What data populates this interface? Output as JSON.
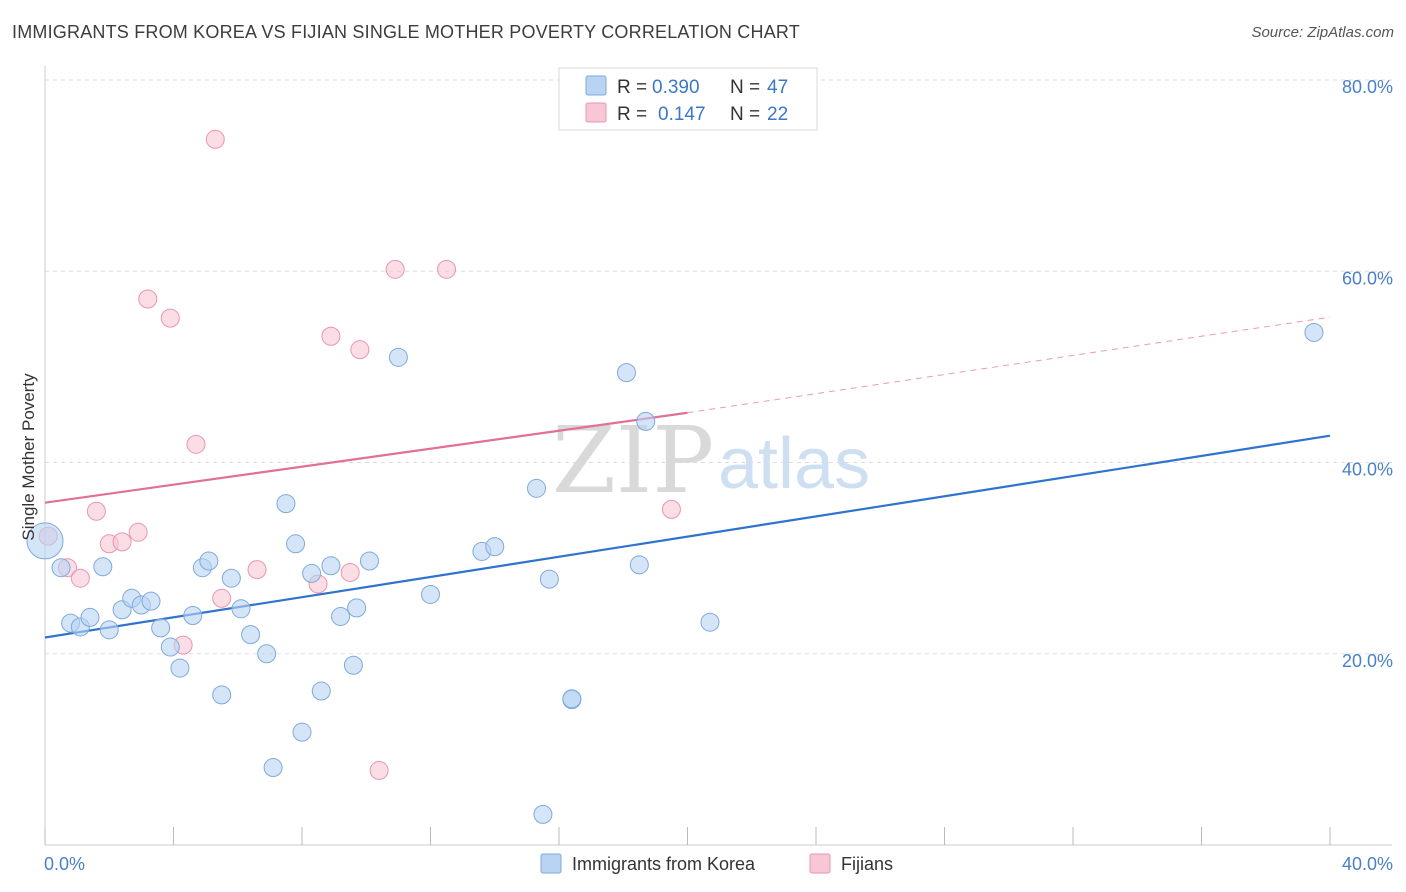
{
  "title": "IMMIGRANTS FROM KOREA VS FIJIAN SINGLE MOTHER POVERTY CORRELATION CHART",
  "source": "Source: ZipAtlas.com",
  "watermark": {
    "zip": "ZIP",
    "atlas": "atlas"
  },
  "colors": {
    "korea_fill": "#b9d3f3",
    "korea_stroke": "#7fa9dc",
    "korea_line": "#2f74cc",
    "fiji_fill": "#f8c7d6",
    "fiji_stroke": "#e896b0",
    "fiji_line": "#e07098",
    "grid": "#dddddd",
    "axis_text": "#4a80c8"
  },
  "legend": {
    "rows": [
      {
        "r_label": "R =",
        "r_value": "0.390",
        "n_label": "N =",
        "n_value": "47"
      },
      {
        "r_label": "R =",
        "r_value": "0.147",
        "n_label": "N =",
        "n_value": "22"
      }
    ]
  },
  "bottom_legend": [
    "Immigrants from Korea",
    "Fijians"
  ],
  "chart_data": {
    "type": "scatter",
    "title": "IMMIGRANTS FROM KOREA VS FIJIAN SINGLE MOTHER POVERTY CORRELATION CHART",
    "xlabel": "",
    "ylabel": "Single Mother Poverty",
    "xlim": [
      0,
      40
    ],
    "ylim": [
      0,
      80
    ],
    "x_tick_labels": [
      "0.0%",
      "40.0%"
    ],
    "y_ticks": [
      20,
      40,
      60,
      80
    ],
    "y_tick_labels": [
      "20.0%",
      "40.0%",
      "60.0%",
      "80.0%"
    ],
    "grid": true,
    "legend_position": "top-center",
    "series": [
      {
        "name": "Immigrants from Korea",
        "trend": {
          "x": [
            0,
            40
          ],
          "y": [
            21.7,
            42.8
          ]
        },
        "points": [
          {
            "x": 0.0,
            "y": 31.8,
            "big": true
          },
          {
            "x": 0.5,
            "y": 29.0
          },
          {
            "x": 0.8,
            "y": 23.2
          },
          {
            "x": 1.1,
            "y": 22.8
          },
          {
            "x": 1.4,
            "y": 23.8
          },
          {
            "x": 1.8,
            "y": 29.1
          },
          {
            "x": 2.0,
            "y": 22.5
          },
          {
            "x": 2.4,
            "y": 24.6
          },
          {
            "x": 2.7,
            "y": 25.8
          },
          {
            "x": 3.0,
            "y": 25.1
          },
          {
            "x": 3.3,
            "y": 25.5
          },
          {
            "x": 3.6,
            "y": 22.7
          },
          {
            "x": 3.9,
            "y": 20.7
          },
          {
            "x": 4.2,
            "y": 18.5
          },
          {
            "x": 4.6,
            "y": 24.0
          },
          {
            "x": 4.9,
            "y": 29.0
          },
          {
            "x": 5.1,
            "y": 29.7
          },
          {
            "x": 5.5,
            "y": 15.7
          },
          {
            "x": 5.8,
            "y": 27.9
          },
          {
            "x": 6.1,
            "y": 24.7
          },
          {
            "x": 6.4,
            "y": 22.0
          },
          {
            "x": 6.9,
            "y": 20.0
          },
          {
            "x": 7.1,
            "y": 8.1
          },
          {
            "x": 7.5,
            "y": 35.7
          },
          {
            "x": 7.8,
            "y": 31.5
          },
          {
            "x": 8.0,
            "y": 11.8
          },
          {
            "x": 8.3,
            "y": 28.4
          },
          {
            "x": 8.6,
            "y": 16.1
          },
          {
            "x": 8.9,
            "y": 29.2
          },
          {
            "x": 9.2,
            "y": 23.9
          },
          {
            "x": 9.6,
            "y": 18.8
          },
          {
            "x": 9.7,
            "y": 24.8
          },
          {
            "x": 10.1,
            "y": 29.7
          },
          {
            "x": 11.0,
            "y": 51.0
          },
          {
            "x": 12.0,
            "y": 26.2
          },
          {
            "x": 13.6,
            "y": 30.7
          },
          {
            "x": 14.0,
            "y": 31.2
          },
          {
            "x": 15.3,
            "y": 37.3
          },
          {
            "x": 15.5,
            "y": 3.2
          },
          {
            "x": 15.7,
            "y": 27.8
          },
          {
            "x": 16.4,
            "y": 15.2
          },
          {
            "x": 16.4,
            "y": 15.3
          },
          {
            "x": 18.1,
            "y": 49.4
          },
          {
            "x": 18.5,
            "y": 29.3
          },
          {
            "x": 18.7,
            "y": 44.3
          },
          {
            "x": 20.7,
            "y": 23.3
          },
          {
            "x": 39.5,
            "y": 53.6
          }
        ]
      },
      {
        "name": "Fijians",
        "trend": {
          "x": [
            0,
            20
          ],
          "y": [
            35.8,
            45.2
          ]
        },
        "trend_dashed": {
          "x": [
            20,
            40
          ],
          "y": [
            45.2,
            55.2
          ]
        },
        "points": [
          {
            "x": 0.1,
            "y": 32.3
          },
          {
            "x": 0.7,
            "y": 29.0
          },
          {
            "x": 1.1,
            "y": 27.9
          },
          {
            "x": 1.6,
            "y": 34.9
          },
          {
            "x": 2.0,
            "y": 31.5
          },
          {
            "x": 2.4,
            "y": 31.7
          },
          {
            "x": 2.9,
            "y": 32.7
          },
          {
            "x": 3.2,
            "y": 57.1
          },
          {
            "x": 3.9,
            "y": 55.1
          },
          {
            "x": 4.3,
            "y": 20.9
          },
          {
            "x": 4.7,
            "y": 41.9
          },
          {
            "x": 5.3,
            "y": 73.8
          },
          {
            "x": 5.5,
            "y": 25.8
          },
          {
            "x": 6.6,
            "y": 28.8
          },
          {
            "x": 8.5,
            "y": 27.3
          },
          {
            "x": 8.9,
            "y": 53.2
          },
          {
            "x": 9.5,
            "y": 28.5
          },
          {
            "x": 9.8,
            "y": 51.8
          },
          {
            "x": 10.4,
            "y": 7.8
          },
          {
            "x": 10.9,
            "y": 60.2
          },
          {
            "x": 12.5,
            "y": 60.2
          },
          {
            "x": 19.5,
            "y": 35.1
          }
        ]
      }
    ]
  }
}
